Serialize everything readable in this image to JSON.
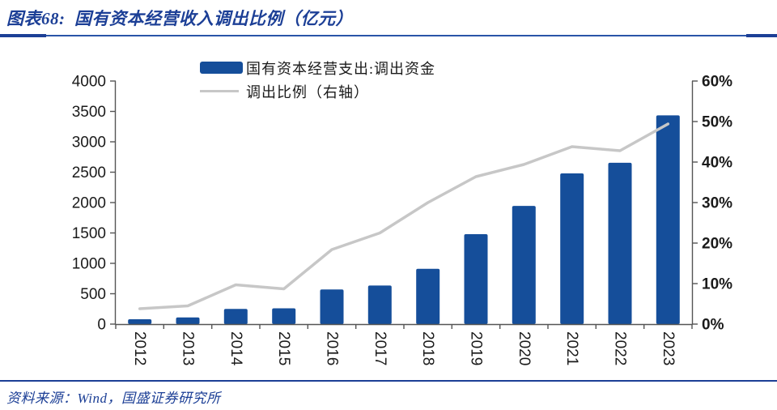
{
  "page": {
    "title": "图表68:  国有资本经营收入调出比例（亿元）",
    "source": "资料来源：Wind，国盛证券研究所"
  },
  "colors": {
    "navy": "#1c3f96",
    "bar_blue": "#154e9a",
    "line_gray": "#c7c7c7",
    "axis_gray": "#555555",
    "tick_text": "#1a1a1a"
  },
  "chart_data": {
    "type": "bar",
    "title": "国有资本经营收入调出比例（亿元）",
    "categories": [
      "2012",
      "2013",
      "2014",
      "2015",
      "2016",
      "2017",
      "2018",
      "2019",
      "2020",
      "2021",
      "2022",
      "2023"
    ],
    "series": [
      {
        "name": "国有资本经营支出:调出资金",
        "type": "bar",
        "axis": "left",
        "color": "#154e9a",
        "values": [
          80,
          110,
          250,
          260,
          570,
          635,
          910,
          1480,
          1945,
          2480,
          2655,
          3435
        ]
      },
      {
        "name": "调出比例（右轴）",
        "type": "line",
        "axis": "right",
        "color": "#c7c7c7",
        "values": [
          3.8,
          4.5,
          9.7,
          8.7,
          18.4,
          22.5,
          30.0,
          36.4,
          39.4,
          43.8,
          42.8,
          49.4
        ]
      }
    ],
    "left_axis": {
      "min": 0,
      "max": 4000,
      "tick_step": 500,
      "tick_labels": [
        "0",
        "500",
        "1000",
        "1500",
        "2000",
        "2500",
        "3000",
        "3500",
        "4000"
      ]
    },
    "right_axis": {
      "min": 0,
      "max": 60,
      "tick_step": 10,
      "tick_labels": [
        "0%",
        "10%",
        "20%",
        "30%",
        "40%",
        "50%",
        "60%"
      ]
    },
    "legend_position": "top",
    "grid": false
  }
}
